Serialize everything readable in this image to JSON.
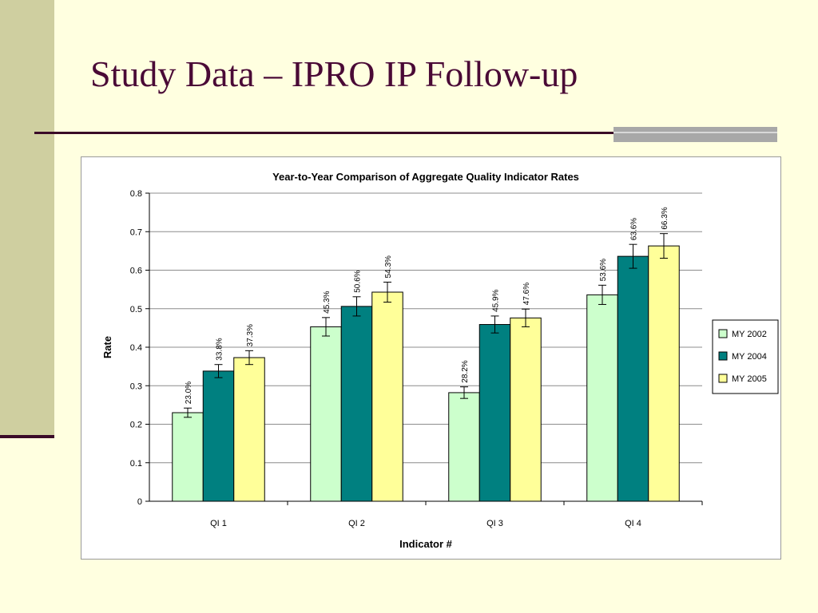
{
  "slide": {
    "title": "Study Data – IPRO IP Follow-up"
  },
  "colors": {
    "background": "#FFFFE0",
    "left_band": "#CFCFA0",
    "title_text": "#4A0A36",
    "rule": "#3A0A28",
    "accent_bar": "#A8A8A8"
  },
  "chart_data": {
    "type": "bar",
    "title": "Year-to-Year Comparison of Aggregate Quality Indicator Rates",
    "xlabel": "Indicator #",
    "ylabel": "Rate",
    "categories": [
      "QI 1",
      "QI 2",
      "QI 3",
      "QI 4"
    ],
    "ylim": [
      0,
      0.8
    ],
    "yticks": [
      "0",
      "0.1",
      "0.2",
      "0.3",
      "0.4",
      "0.5",
      "0.6",
      "0.7",
      "0.8"
    ],
    "grid": true,
    "legend_position": "right",
    "error_bars": true,
    "series": [
      {
        "name": "MY 2002",
        "color": "#CCFFCC",
        "values": [
          0.23,
          0.453,
          0.282,
          0.536
        ],
        "error": [
          0.012,
          0.024,
          0.015,
          0.025
        ],
        "labels": [
          "23.0%",
          "45.3%",
          "28.2%",
          "53.6%"
        ]
      },
      {
        "name": "MY 2004",
        "color": "#008080",
        "values": [
          0.338,
          0.506,
          0.459,
          0.636
        ],
        "error": [
          0.017,
          0.025,
          0.022,
          0.031
        ],
        "labels": [
          "33.8%",
          "50.6%",
          "45.9%",
          "63.6%"
        ]
      },
      {
        "name": "MY 2005",
        "color": "#FFFF99",
        "values": [
          0.373,
          0.543,
          0.476,
          0.663
        ],
        "error": [
          0.018,
          0.026,
          0.023,
          0.032
        ],
        "labels": [
          "37.3%",
          "54.3%",
          "47.6%",
          "66.3%"
        ]
      }
    ]
  }
}
